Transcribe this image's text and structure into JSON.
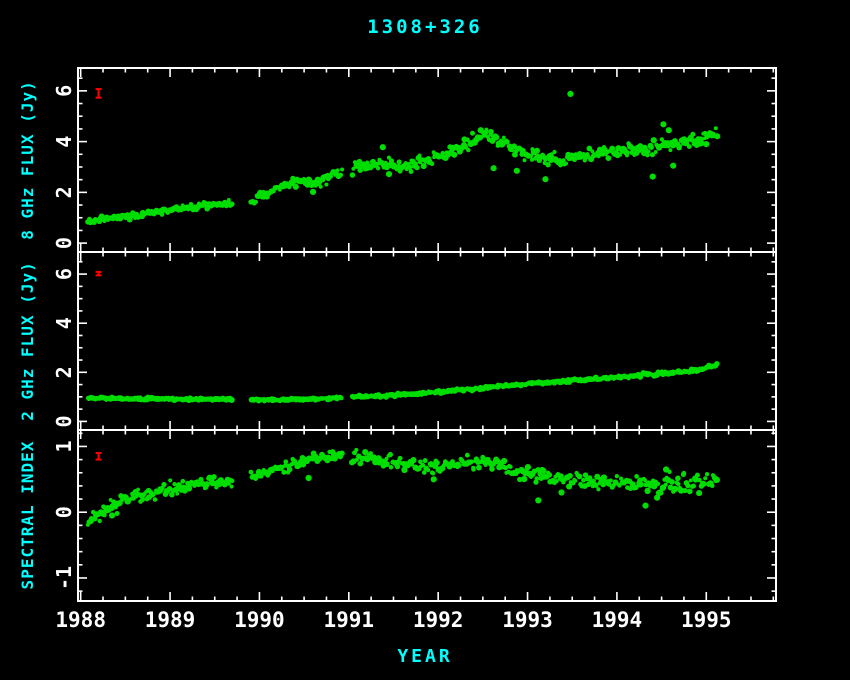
{
  "title": "1308+326",
  "x_axis": {
    "label": "YEAR",
    "min": 1987.97,
    "max": 1995.78,
    "ticks": [
      1988,
      1989,
      1990,
      1991,
      1992,
      1993,
      1994,
      1995
    ],
    "minor_step": 0.25
  },
  "colors": {
    "background": "#000000",
    "frame": "#ffffff",
    "tick_text": "#ffffff",
    "label": "#00ffff",
    "marker": "#00dd00",
    "error": "#ff0000"
  },
  "gaps": [
    [
      1989.7,
      1989.9
    ],
    [
      1990.93,
      1991.03
    ]
  ],
  "chart_data": [
    {
      "type": "scatter",
      "id": "flux8",
      "series_name": "8 GHz flux density",
      "ylabel": "8 GHz FLUX (Jy)",
      "ylim": [
        -0.35,
        6.9
      ],
      "yticks": [
        0,
        2,
        4,
        6
      ],
      "minor_step": 0.5,
      "x_range": [
        1988.08,
        1995.12
      ],
      "n_points": 500,
      "seed": 11,
      "anchors": [
        [
          1988.08,
          0.88
        ],
        [
          1988.3,
          0.95
        ],
        [
          1988.6,
          1.08
        ],
        [
          1988.9,
          1.25
        ],
        [
          1989.2,
          1.42
        ],
        [
          1989.5,
          1.52
        ],
        [
          1989.7,
          1.55
        ],
        [
          1989.93,
          1.62
        ],
        [
          1990.05,
          1.9
        ],
        [
          1990.2,
          2.2
        ],
        [
          1990.35,
          2.38
        ],
        [
          1990.5,
          2.45
        ],
        [
          1990.62,
          2.32
        ],
        [
          1990.78,
          2.62
        ],
        [
          1990.92,
          2.88
        ],
        [
          1991.05,
          2.98
        ],
        [
          1991.25,
          3.02
        ],
        [
          1991.45,
          3.15
        ],
        [
          1991.65,
          3.05
        ],
        [
          1991.85,
          3.22
        ],
        [
          1992.05,
          3.45
        ],
        [
          1992.25,
          3.8
        ],
        [
          1992.45,
          4.2
        ],
        [
          1992.55,
          4.28
        ],
        [
          1992.7,
          4.0
        ],
        [
          1992.85,
          3.62
        ],
        [
          1993.05,
          3.42
        ],
        [
          1993.35,
          3.28
        ],
        [
          1993.65,
          3.42
        ],
        [
          1993.95,
          3.58
        ],
        [
          1994.25,
          3.72
        ],
        [
          1994.55,
          3.88
        ],
        [
          1994.85,
          4.02
        ],
        [
          1995.1,
          4.32
        ]
      ],
      "sigma_anchors": [
        [
          1988.0,
          0.05
        ],
        [
          1989.5,
          0.06
        ],
        [
          1990.3,
          0.08
        ],
        [
          1991.0,
          0.12
        ],
        [
          1992.0,
          0.12
        ],
        [
          1992.5,
          0.13
        ],
        [
          1993.0,
          0.12
        ],
        [
          1994.0,
          0.12
        ],
        [
          1994.6,
          0.17
        ],
        [
          1995.1,
          0.11
        ]
      ],
      "outliers": [
        [
          1990.6,
          2.02
        ],
        [
          1991.38,
          3.78
        ],
        [
          1991.45,
          2.72
        ],
        [
          1992.62,
          2.95
        ],
        [
          1992.88,
          2.85
        ],
        [
          1993.2,
          2.52
        ],
        [
          1993.48,
          5.88
        ],
        [
          1994.4,
          2.62
        ],
        [
          1994.52,
          4.68
        ],
        [
          1994.58,
          4.45
        ],
        [
          1994.63,
          3.05
        ],
        [
          1995.0,
          3.9
        ]
      ],
      "error_bar": {
        "x": 1988.2,
        "y": 5.9,
        "half": 0.17
      }
    },
    {
      "type": "scatter",
      "id": "flux2",
      "series_name": "2 GHz flux density",
      "ylabel": "2 GHz FLUX (Jy)",
      "ylim": [
        -0.35,
        6.9
      ],
      "yticks": [
        0,
        2,
        4,
        6
      ],
      "minor_step": 0.5,
      "x_range": [
        1988.08,
        1995.12
      ],
      "n_points": 470,
      "seed": 22,
      "anchors": [
        [
          1988.08,
          0.95
        ],
        [
          1988.6,
          0.93
        ],
        [
          1989.2,
          0.91
        ],
        [
          1989.7,
          0.9
        ],
        [
          1990.1,
          0.88
        ],
        [
          1990.6,
          0.92
        ],
        [
          1991.0,
          0.99
        ],
        [
          1991.5,
          1.07
        ],
        [
          1992.0,
          1.19
        ],
        [
          1992.5,
          1.36
        ],
        [
          1993.0,
          1.54
        ],
        [
          1993.5,
          1.66
        ],
        [
          1994.0,
          1.8
        ],
        [
          1994.5,
          1.95
        ],
        [
          1994.9,
          2.06
        ],
        [
          1995.1,
          2.28
        ]
      ],
      "sigma_anchors": [
        [
          1988.0,
          0.02
        ],
        [
          1991.0,
          0.022
        ],
        [
          1993.0,
          0.028
        ],
        [
          1995.1,
          0.035
        ]
      ],
      "outliers": [],
      "error_bar": {
        "x": 1988.2,
        "y": 6.02,
        "half": 0.07
      }
    },
    {
      "type": "scatter",
      "id": "spectral",
      "series_name": "spectral index",
      "ylabel": "SPECTRAL INDEX",
      "ylim": [
        -1.35,
        1.25
      ],
      "yticks": [
        -1,
        0,
        1
      ],
      "minor_step": 0.2,
      "x_range": [
        1988.08,
        1995.12
      ],
      "n_points": 480,
      "seed": 33,
      "anchors": [
        [
          1988.08,
          -0.16
        ],
        [
          1988.25,
          0.0
        ],
        [
          1988.45,
          0.15
        ],
        [
          1988.7,
          0.27
        ],
        [
          1989.0,
          0.36
        ],
        [
          1989.3,
          0.43
        ],
        [
          1989.6,
          0.46
        ],
        [
          1989.93,
          0.53
        ],
        [
          1990.15,
          0.64
        ],
        [
          1990.4,
          0.74
        ],
        [
          1990.65,
          0.82
        ],
        [
          1990.9,
          0.88
        ],
        [
          1991.1,
          0.85
        ],
        [
          1991.35,
          0.79
        ],
        [
          1991.6,
          0.73
        ],
        [
          1991.85,
          0.69
        ],
        [
          1992.1,
          0.72
        ],
        [
          1992.35,
          0.76
        ],
        [
          1992.6,
          0.73
        ],
        [
          1992.85,
          0.65
        ],
        [
          1993.1,
          0.55
        ],
        [
          1993.4,
          0.49
        ],
        [
          1993.7,
          0.46
        ],
        [
          1994.0,
          0.45
        ],
        [
          1994.4,
          0.44
        ],
        [
          1994.8,
          0.42
        ],
        [
          1995.1,
          0.46
        ]
      ],
      "sigma_anchors": [
        [
          1988.0,
          0.06
        ],
        [
          1989.5,
          0.05
        ],
        [
          1990.5,
          0.04
        ],
        [
          1991.0,
          0.045
        ],
        [
          1992.0,
          0.05
        ],
        [
          1993.0,
          0.055
        ],
        [
          1994.0,
          0.05
        ],
        [
          1994.6,
          0.08
        ],
        [
          1995.1,
          0.05
        ]
      ],
      "outliers": [
        [
          1988.35,
          -0.05
        ],
        [
          1990.55,
          0.52
        ],
        [
          1991.95,
          0.5
        ],
        [
          1993.12,
          0.18
        ],
        [
          1993.38,
          0.3
        ],
        [
          1994.32,
          0.1
        ],
        [
          1994.45,
          0.22
        ],
        [
          1994.55,
          0.65
        ]
      ],
      "error_bar": {
        "x": 1988.2,
        "y": 0.85,
        "half": 0.05
      }
    }
  ]
}
